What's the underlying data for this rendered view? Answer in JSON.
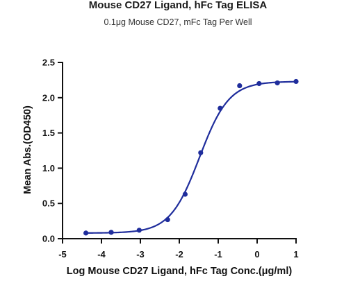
{
  "chart_data": {
    "type": "scatter",
    "title": "Mouse CD27 Ligand, hFc Tag ELISA",
    "subtitle": "0.1μg Mouse CD27, mFc Tag Per Well",
    "xlabel": "Log Mouse CD27 Ligand, hFc Tag Conc.(μg/ml)",
    "ylabel": "Mean Abs.(OD450)",
    "xlim": [
      -5,
      1
    ],
    "ylim": [
      0,
      2.5
    ],
    "xticks": [
      "-5",
      "-4",
      "-3",
      "-2",
      "-1",
      "0",
      "1"
    ],
    "yticks": [
      "0.0",
      "0.5",
      "1.0",
      "1.5",
      "2.0",
      "2.5"
    ],
    "grid": false,
    "color": "#1f2d9c",
    "series": [
      {
        "points": [
          {
            "x": -4.4,
            "y": 0.08
          },
          {
            "x": -3.75,
            "y": 0.09
          },
          {
            "x": -3.03,
            "y": 0.12
          },
          {
            "x": -2.3,
            "y": 0.27
          },
          {
            "x": -1.85,
            "y": 0.63
          },
          {
            "x": -1.45,
            "y": 1.22
          },
          {
            "x": -0.95,
            "y": 1.85
          },
          {
            "x": -0.45,
            "y": 2.17
          },
          {
            "x": 0.05,
            "y": 2.2
          },
          {
            "x": 0.52,
            "y": 2.21
          },
          {
            "x": 1.0,
            "y": 2.23
          }
        ],
        "fit": {
          "model": "4PL",
          "bottom": 0.08,
          "top": 2.23,
          "logEC50": -1.48,
          "hill": 1.15
        }
      }
    ]
  }
}
